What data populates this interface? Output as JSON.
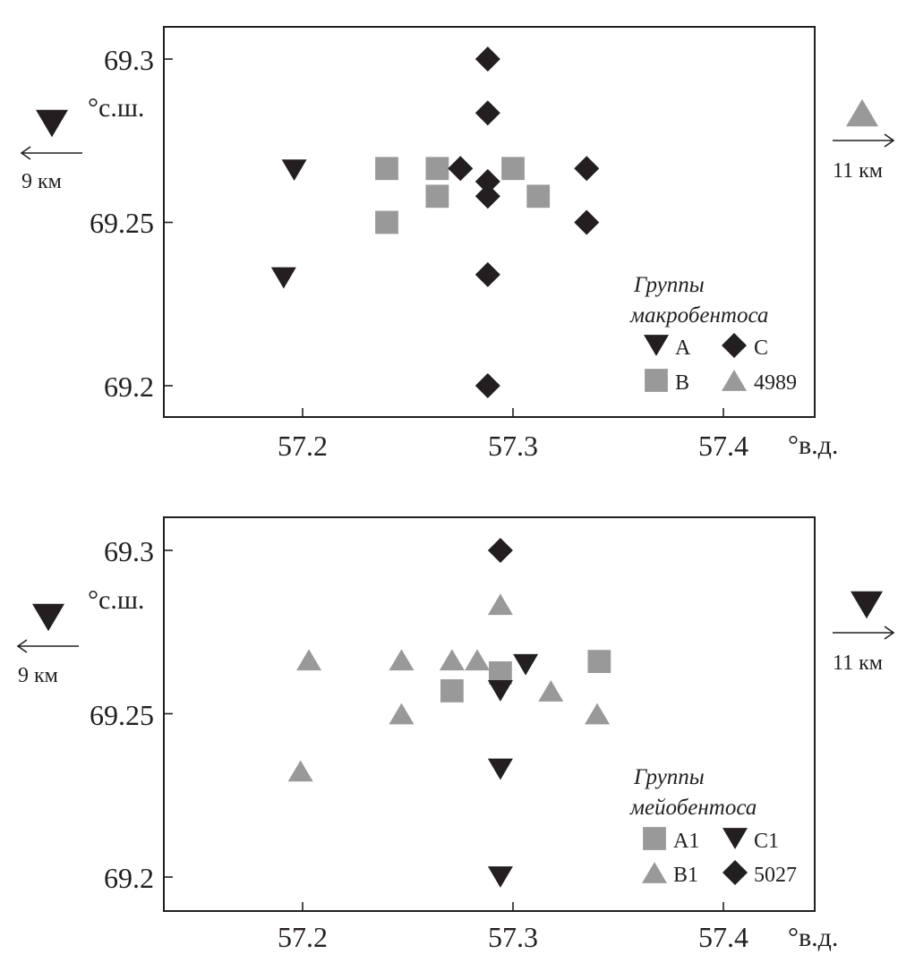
{
  "colors": {
    "dark": "#231f20",
    "gray": "#999999"
  },
  "chart_data": [
    {
      "type": "scatter",
      "x_unit_label": "°в.д.",
      "y_unit_label": "°с.ш.",
      "xlim": [
        57.13,
        57.45
      ],
      "ylim": [
        69.19,
        69.31
      ],
      "x_ticks": [
        "57.2",
        "57.3",
        "57.4"
      ],
      "x_tick_values": [
        57.2,
        57.3,
        57.4
      ],
      "y_ticks": [
        "69.3",
        "69.25",
        "69.2"
      ],
      "y_tick_values": [
        69.3,
        69.25,
        69.2
      ],
      "legend_title": [
        "Группы",
        "макробентоса"
      ],
      "legend_placement": "bottom-right",
      "offscreen_left": {
        "label": "9 км",
        "marker": "triangle-down",
        "color": "#231f20"
      },
      "offscreen_right": {
        "label": "11 км",
        "marker": "triangle-up",
        "color": "#999999"
      },
      "series": [
        {
          "name": "A",
          "marker": "triangle-down",
          "color": "#231f20",
          "points": [
            [
              57.196,
              69.266
            ],
            [
              57.191,
              69.233
            ]
          ]
        },
        {
          "name": "B",
          "marker": "square",
          "color": "#999999",
          "points": [
            [
              57.24,
              69.2665
            ],
            [
              57.264,
              69.2665
            ],
            [
              57.3,
              69.2665
            ],
            [
              57.264,
              69.258
            ],
            [
              57.312,
              69.258
            ],
            [
              57.24,
              69.25
            ]
          ]
        },
        {
          "name": "C",
          "marker": "diamond",
          "color": "#231f20",
          "points": [
            [
              57.288,
              69.3
            ],
            [
              57.288,
              69.2835
            ],
            [
              57.275,
              69.2665
            ],
            [
              57.335,
              69.2665
            ],
            [
              57.288,
              69.2625
            ],
            [
              57.288,
              69.258
            ],
            [
              57.335,
              69.25
            ],
            [
              57.288,
              69.234
            ],
            [
              57.288,
              69.2
            ]
          ]
        },
        {
          "name": "4989",
          "marker": "triangle-up",
          "color": "#999999",
          "points": []
        }
      ]
    },
    {
      "type": "scatter",
      "x_unit_label": "°в.д.",
      "y_unit_label": "°с.ш.",
      "xlim": [
        57.13,
        57.45
      ],
      "ylim": [
        69.19,
        69.31
      ],
      "x_ticks": [
        "57.2",
        "57.3",
        "57.4"
      ],
      "x_tick_values": [
        57.2,
        57.3,
        57.4
      ],
      "y_ticks": [
        "69.3",
        "69.25",
        "69.2"
      ],
      "y_tick_values": [
        69.3,
        69.25,
        69.2
      ],
      "legend_title": [
        "Группы",
        "мейобентоса"
      ],
      "legend_placement": "bottom-right",
      "offscreen_left": {
        "label": "9 км",
        "marker": "triangle-down",
        "color": "#231f20"
      },
      "offscreen_right": {
        "label": "11 км",
        "marker": "triangle-down",
        "color": "#231f20"
      },
      "series": [
        {
          "name": "A1",
          "marker": "square",
          "color": "#999999",
          "points": [
            [
              57.294,
              69.2625
            ],
            [
              57.271,
              69.257
            ],
            [
              57.341,
              69.266
            ]
          ]
        },
        {
          "name": "B1",
          "marker": "triangle-up",
          "color": "#999999",
          "points": [
            [
              57.294,
              69.2835
            ],
            [
              57.203,
              69.2665
            ],
            [
              57.247,
              69.2665
            ],
            [
              57.271,
              69.2665
            ],
            [
              57.283,
              69.2665
            ],
            [
              57.318,
              69.257
            ],
            [
              57.247,
              69.25
            ],
            [
              57.34,
              69.25
            ],
            [
              57.199,
              69.2325
            ]
          ]
        },
        {
          "name": "C1",
          "marker": "triangle-down",
          "color": "#231f20",
          "points": [
            [
              57.306,
              69.265
            ],
            [
              57.294,
              69.257
            ],
            [
              57.294,
              69.233
            ],
            [
              57.294,
              69.2
            ]
          ]
        },
        {
          "name": "5027",
          "marker": "diamond",
          "color": "#231f20",
          "points": [
            [
              57.294,
              69.3
            ]
          ]
        }
      ]
    }
  ]
}
